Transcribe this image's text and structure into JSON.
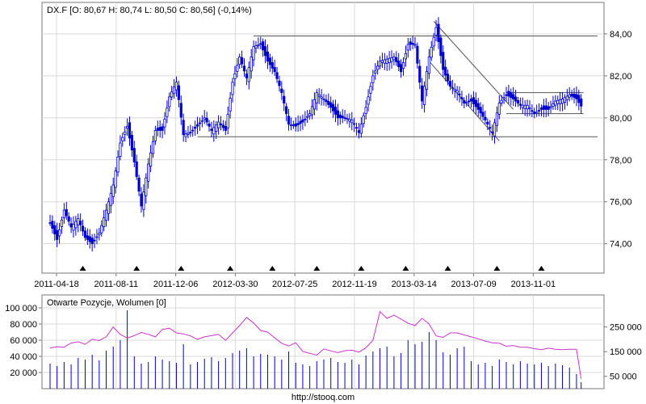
{
  "chart_data": [
    {
      "type": "candlestick",
      "title": "DX.F [O: 80,67  H: 80,74  L: 80,50  C: 80,56] (-0,14%)",
      "x_tick_labels": [
        "2011-04-18",
        "2011-08-11",
        "2011-12-06",
        "2012-03-30",
        "2012-07-25",
        "2012-11-19",
        "2013-03-14",
        "2013-07-09",
        "2013-11-01"
      ],
      "y_tick_labels": [
        "74,00",
        "76,00",
        "78,00",
        "80,00",
        "82,00",
        "84,00"
      ],
      "y_ticks": [
        74,
        76,
        78,
        80,
        82,
        84
      ],
      "ylim": [
        72.6,
        85.5
      ],
      "close_series": [
        [
          0,
          75.0
        ],
        [
          3,
          74.2
        ],
        [
          6,
          75.6
        ],
        [
          9,
          74.8
        ],
        [
          12,
          75.2
        ],
        [
          15,
          74.3
        ],
        [
          18,
          74.0
        ],
        [
          21,
          74.5
        ],
        [
          24,
          75.6
        ],
        [
          27,
          76.8
        ],
        [
          30,
          78.8
        ],
        [
          33,
          79.6
        ],
        [
          36,
          77.9
        ],
        [
          39,
          75.8
        ],
        [
          42,
          77.8
        ],
        [
          45,
          79.4
        ],
        [
          48,
          79.4
        ],
        [
          51,
          81.0
        ],
        [
          54,
          81.7
        ],
        [
          57,
          79.2
        ],
        [
          60,
          79.3
        ],
        [
          63,
          79.6
        ],
        [
          66,
          80.0
        ],
        [
          69,
          79.4
        ],
        [
          72,
          79.8
        ],
        [
          75,
          79.4
        ],
        [
          78,
          81.7
        ],
        [
          81,
          82.9
        ],
        [
          84,
          81.9
        ],
        [
          87,
          83.4
        ],
        [
          90,
          83.5
        ],
        [
          93,
          82.7
        ],
        [
          96,
          82.2
        ],
        [
          99,
          81.2
        ],
        [
          102,
          79.7
        ],
        [
          105,
          79.6
        ],
        [
          108,
          79.8
        ],
        [
          111,
          80.2
        ],
        [
          114,
          81.2
        ],
        [
          117,
          80.9
        ],
        [
          120,
          80.5
        ],
        [
          123,
          80.0
        ],
        [
          126,
          80.0
        ],
        [
          129,
          79.9
        ],
        [
          132,
          79.3
        ],
        [
          135,
          80.5
        ],
        [
          138,
          82.0
        ],
        [
          141,
          82.7
        ],
        [
          144,
          82.8
        ],
        [
          147,
          82.9
        ],
        [
          150,
          82.2
        ],
        [
          153,
          83.5
        ],
        [
          156,
          83.5
        ],
        [
          159,
          80.8
        ],
        [
          162,
          82.9
        ],
        [
          165,
          84.3
        ],
        [
          168,
          82.3
        ],
        [
          171,
          81.5
        ],
        [
          174,
          81.3
        ],
        [
          177,
          80.7
        ],
        [
          180,
          80.8
        ],
        [
          183,
          80.4
        ],
        [
          186,
          79.9
        ],
        [
          189,
          79.3
        ],
        [
          192,
          80.7
        ],
        [
          195,
          81.1
        ],
        [
          198,
          80.9
        ],
        [
          201,
          80.6
        ],
        [
          204,
          80.6
        ],
        [
          207,
          80.2
        ],
        [
          210,
          80.4
        ],
        [
          213,
          80.4
        ],
        [
          216,
          80.8
        ],
        [
          219,
          80.9
        ],
        [
          222,
          81.1
        ],
        [
          225,
          80.9
        ],
        [
          227,
          80.56
        ]
      ],
      "x_max_index": 234,
      "trend_lines": [
        {
          "from": [
            87,
            83.9
          ],
          "to": [
            234,
            83.9
          ]
        },
        {
          "from": [
            63,
            79.1
          ],
          "to": [
            234,
            79.1
          ]
        },
        {
          "from": [
            195,
            81.2
          ],
          "to": [
            228,
            81.2
          ]
        },
        {
          "from": [
            195,
            80.2
          ],
          "to": [
            228,
            80.2
          ]
        },
        {
          "from": [
            164,
            84.6
          ],
          "to": [
            198,
            80.4
          ]
        },
        {
          "from": [
            162,
            82.7
          ],
          "to": [
            192,
            78.9
          ]
        }
      ],
      "markers_at_index": [
        14,
        37,
        56,
        77,
        95,
        114,
        133,
        152,
        170,
        191,
        210
      ]
    },
    {
      "type": "bar+line",
      "title": "Otwarte Pozycje, Wolumen [0]",
      "left_y_tick_labels": [
        "20 000",
        "40 000",
        "60 000",
        "80 000",
        "100 000"
      ],
      "left_y_ticks": [
        20000,
        40000,
        60000,
        80000,
        100000
      ],
      "left_ylim": [
        0,
        116000
      ],
      "right_y_tick_labels": [
        "50 000",
        "150 000",
        "250 000"
      ],
      "right_y_ticks": [
        50000,
        150000,
        250000
      ],
      "right_ylim": [
        0,
        380000
      ],
      "volume": [
        [
          0,
          31000
        ],
        [
          3,
          28000
        ],
        [
          6,
          33000
        ],
        [
          9,
          30000
        ],
        [
          12,
          38000
        ],
        [
          15,
          36000
        ],
        [
          18,
          42000
        ],
        [
          21,
          35000
        ],
        [
          24,
          47000
        ],
        [
          27,
          52000
        ],
        [
          30,
          60000
        ],
        [
          33,
          97000
        ],
        [
          36,
          40000
        ],
        [
          39,
          31000
        ],
        [
          42,
          33000
        ],
        [
          45,
          40000
        ],
        [
          48,
          36000
        ],
        [
          51,
          34000
        ],
        [
          54,
          32000
        ],
        [
          57,
          55000
        ],
        [
          60,
          30000
        ],
        [
          63,
          33000
        ],
        [
          66,
          37000
        ],
        [
          69,
          39000
        ],
        [
          72,
          34000
        ],
        [
          75,
          38000
        ],
        [
          78,
          44000
        ],
        [
          81,
          47000
        ],
        [
          84,
          50000
        ],
        [
          87,
          40000
        ],
        [
          90,
          43000
        ],
        [
          93,
          42000
        ],
        [
          96,
          40000
        ],
        [
          99,
          36000
        ],
        [
          102,
          46000
        ],
        [
          105,
          32000
        ],
        [
          108,
          30000
        ],
        [
          111,
          28000
        ],
        [
          114,
          34000
        ],
        [
          117,
          36000
        ],
        [
          120,
          38000
        ],
        [
          123,
          33000
        ],
        [
          126,
          32000
        ],
        [
          129,
          36000
        ],
        [
          132,
          30000
        ],
        [
          135,
          41000
        ],
        [
          138,
          46000
        ],
        [
          141,
          50000
        ],
        [
          144,
          52000
        ],
        [
          147,
          40000
        ],
        [
          150,
          44000
        ],
        [
          153,
          60000
        ],
        [
          156,
          55000
        ],
        [
          159,
          58000
        ],
        [
          162,
          70000
        ],
        [
          165,
          60000
        ],
        [
          168,
          45000
        ],
        [
          171,
          42000
        ],
        [
          174,
          50000
        ],
        [
          177,
          52000
        ],
        [
          180,
          34000
        ],
        [
          183,
          30000
        ],
        [
          186,
          32000
        ],
        [
          189,
          28000
        ],
        [
          192,
          36000
        ],
        [
          195,
          33000
        ],
        [
          198,
          30000
        ],
        [
          201,
          34000
        ],
        [
          204,
          31000
        ],
        [
          207,
          30000
        ],
        [
          210,
          32000
        ],
        [
          213,
          28000
        ],
        [
          216,
          31000
        ],
        [
          219,
          29000
        ],
        [
          222,
          26000
        ],
        [
          225,
          18000
        ],
        [
          227,
          8000
        ]
      ],
      "open_interest": [
        [
          0,
          165000
        ],
        [
          3,
          170000
        ],
        [
          6,
          168000
        ],
        [
          9,
          185000
        ],
        [
          12,
          190000
        ],
        [
          15,
          180000
        ],
        [
          18,
          200000
        ],
        [
          21,
          195000
        ],
        [
          24,
          210000
        ],
        [
          27,
          250000
        ],
        [
          30,
          220000
        ],
        [
          33,
          205000
        ],
        [
          36,
          215000
        ],
        [
          39,
          228000
        ],
        [
          42,
          220000
        ],
        [
          45,
          210000
        ],
        [
          48,
          240000
        ],
        [
          51,
          245000
        ],
        [
          54,
          226000
        ],
        [
          57,
          222000
        ],
        [
          60,
          214000
        ],
        [
          63,
          200000
        ],
        [
          66,
          210000
        ],
        [
          69,
          215000
        ],
        [
          72,
          220000
        ],
        [
          75,
          196000
        ],
        [
          78,
          226000
        ],
        [
          81,
          256000
        ],
        [
          84,
          289000
        ],
        [
          87,
          266000
        ],
        [
          90,
          236000
        ],
        [
          93,
          229000
        ],
        [
          96,
          206000
        ],
        [
          99,
          184000
        ],
        [
          102,
          173000
        ],
        [
          105,
          186000
        ],
        [
          108,
          151000
        ],
        [
          111,
          143000
        ],
        [
          114,
          136000
        ],
        [
          117,
          161000
        ],
        [
          120,
          153000
        ],
        [
          123,
          146000
        ],
        [
          126,
          154000
        ],
        [
          129,
          156000
        ],
        [
          132,
          148000
        ],
        [
          135,
          166000
        ],
        [
          138,
          196000
        ],
        [
          141,
          312000
        ],
        [
          144,
          285000
        ],
        [
          147,
          298000
        ],
        [
          150,
          282000
        ],
        [
          153,
          265000
        ],
        [
          156,
          256000
        ],
        [
          159,
          285000
        ],
        [
          162,
          262000
        ],
        [
          165,
          214000
        ],
        [
          168,
          208000
        ],
        [
          171,
          226000
        ],
        [
          174,
          226000
        ],
        [
          177,
          218000
        ],
        [
          180,
          210000
        ],
        [
          183,
          202000
        ],
        [
          186,
          193000
        ],
        [
          189,
          186000
        ],
        [
          192,
          184000
        ],
        [
          195,
          172000
        ],
        [
          198,
          175000
        ],
        [
          201,
          168000
        ],
        [
          204,
          168000
        ],
        [
          207,
          162000
        ],
        [
          210,
          158000
        ],
        [
          213,
          164000
        ],
        [
          216,
          160000
        ],
        [
          219,
          158000
        ],
        [
          222,
          160000
        ],
        [
          225,
          160000
        ],
        [
          227,
          40000
        ]
      ]
    }
  ],
  "footer": {
    "source": "http://stooq.com"
  },
  "colors": {
    "candle_up": "#0000cc",
    "candle_down": "#0000cc",
    "volume": "#0000cc",
    "open_interest": "#cc33cc",
    "grid": "#d8d8d8",
    "trend": "#555555",
    "marker": "#000000",
    "frame": "#777777"
  }
}
